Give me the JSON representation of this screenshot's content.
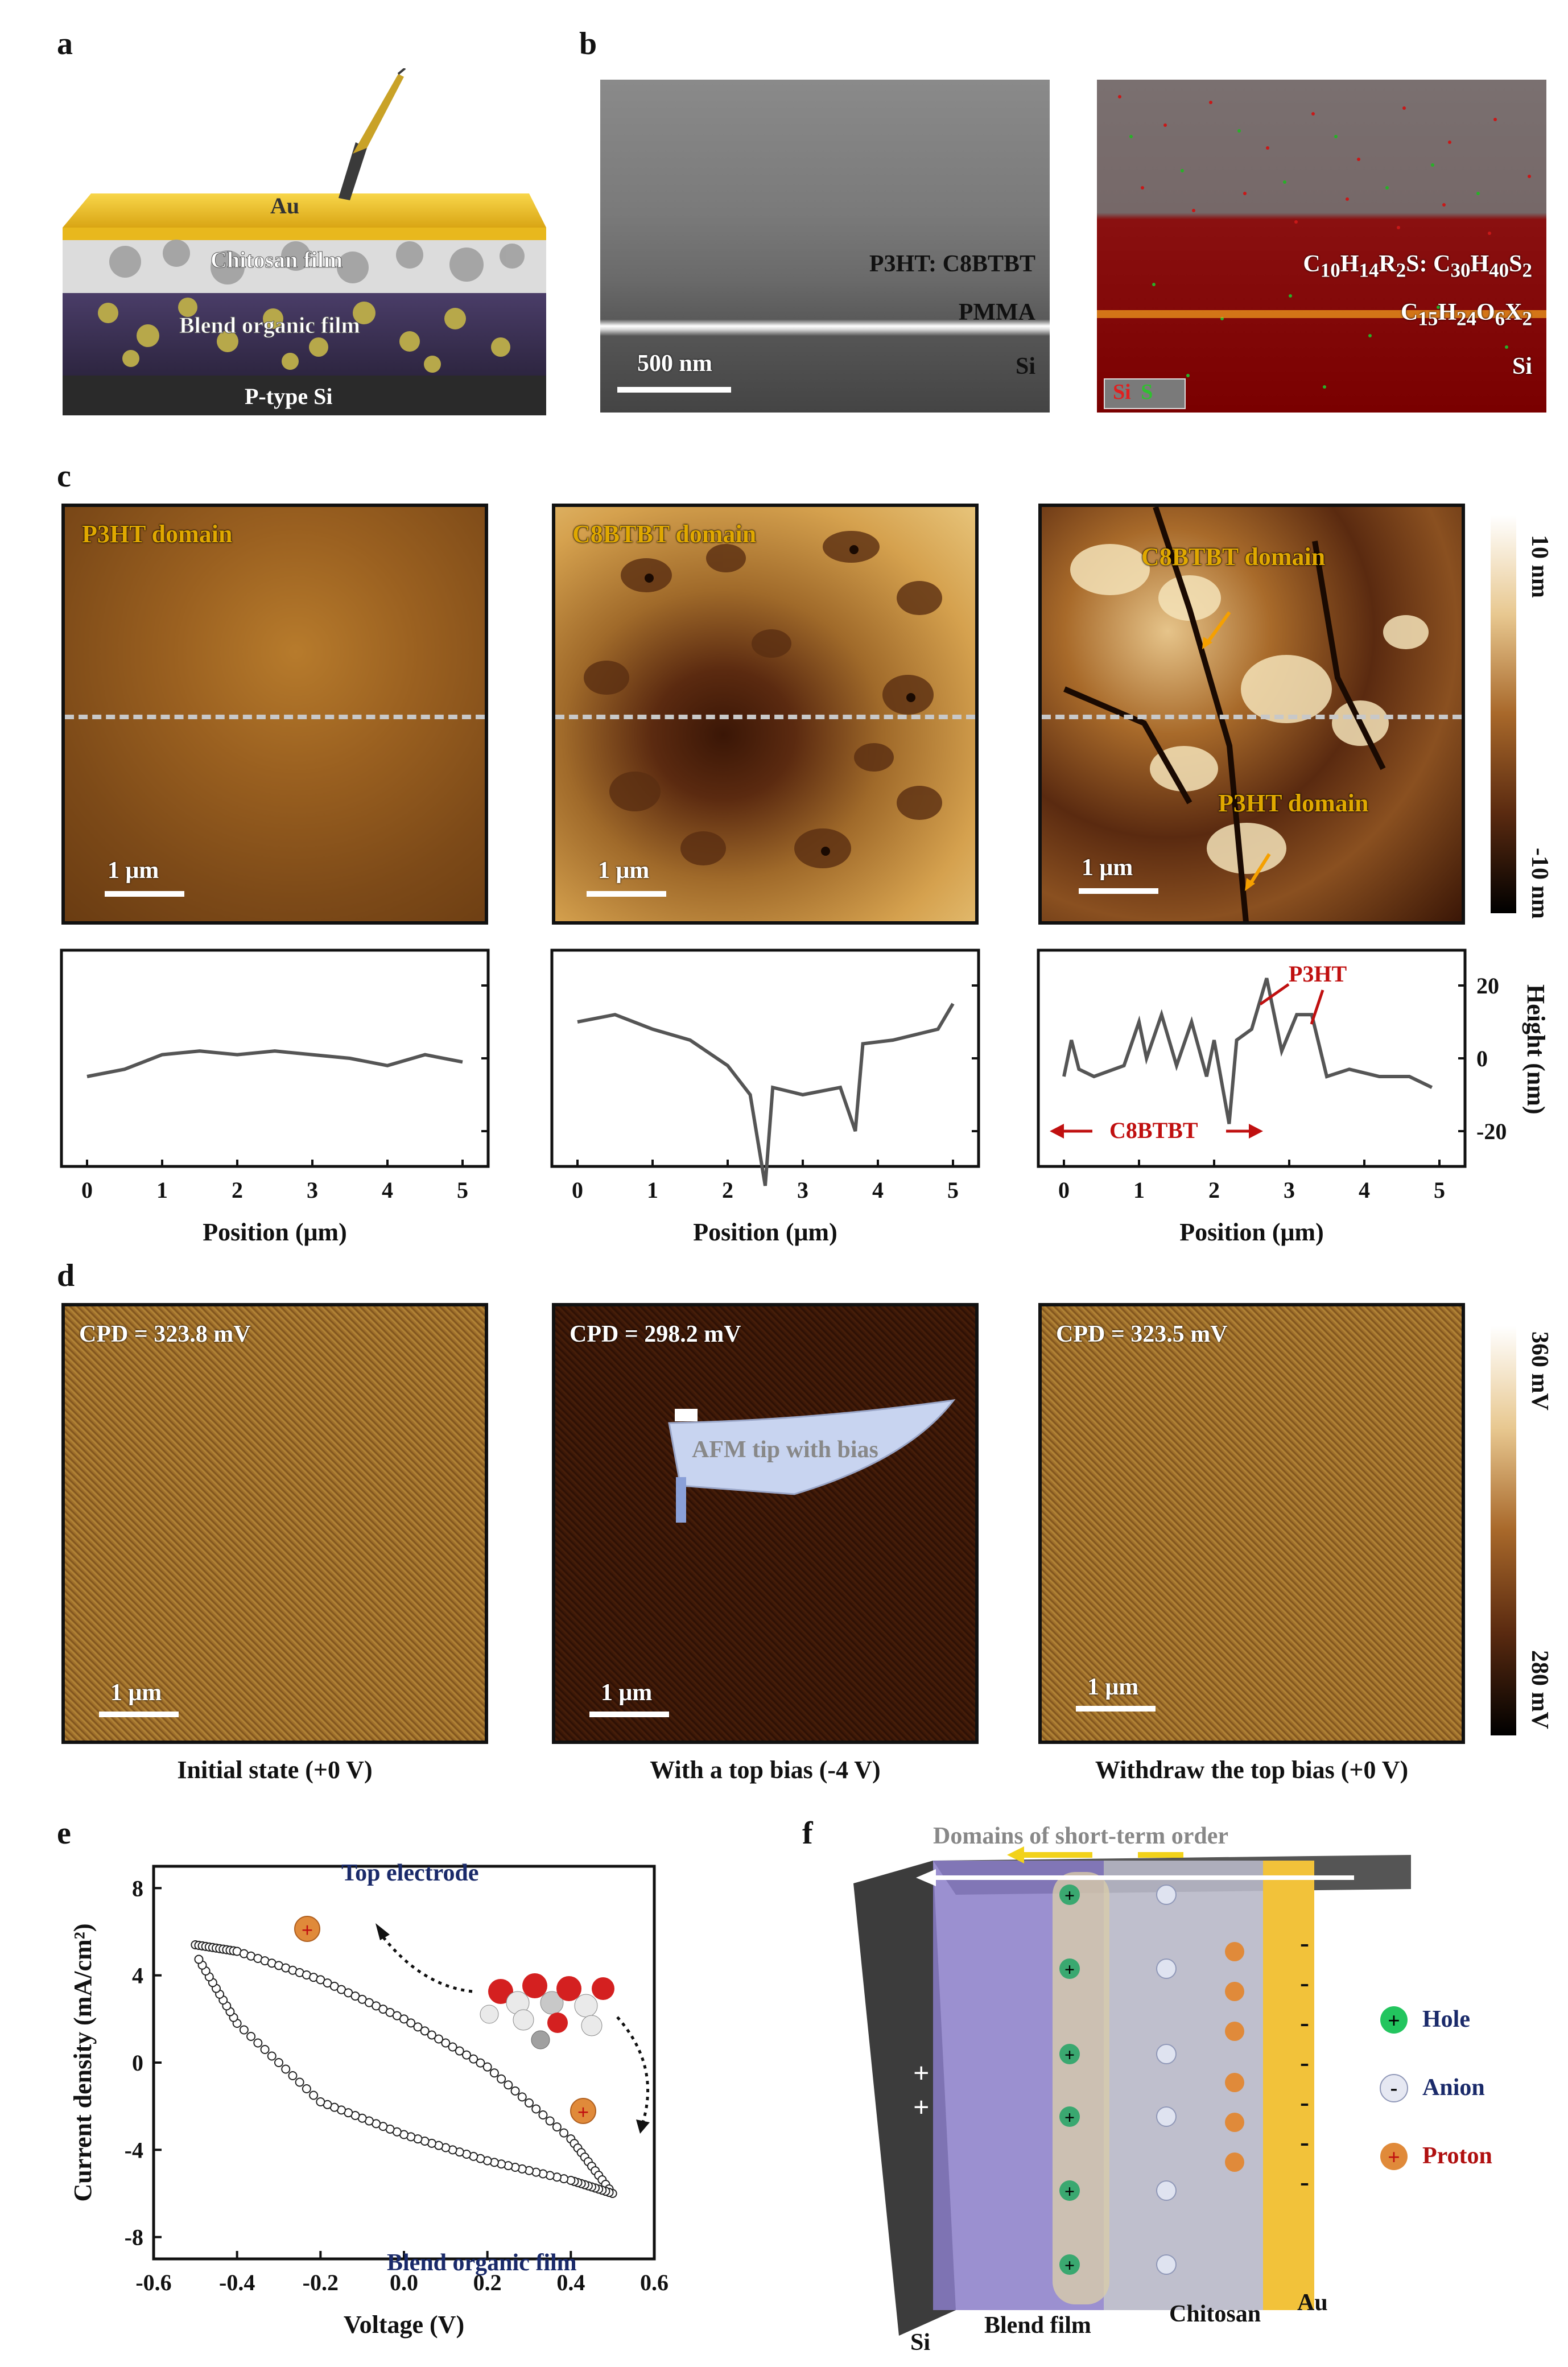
{
  "panels": {
    "a": "a",
    "b": "b",
    "c": "c",
    "d": "d",
    "e": "e",
    "f": "f"
  },
  "panel_a": {
    "layers": [
      "Au",
      "Chitosan film",
      "Blend organic film",
      "P-type Si"
    ]
  },
  "panel_b": {
    "sem": {
      "labels": [
        "P3HT: C8BTBT",
        "PMMA",
        "Si"
      ],
      "scale_bar": "500 nm"
    },
    "eds": {
      "formula1_parts": [
        "C",
        "10",
        "H",
        "14",
        "R",
        "2",
        "S: C",
        "30",
        "H",
        "40",
        "S",
        "2"
      ],
      "formula2_parts": [
        "C",
        "15",
        "H",
        "24",
        "O",
        "6",
        "X",
        "2"
      ],
      "si_label": "Si",
      "legend_si": "Si",
      "legend_s": "S"
    }
  },
  "panel_c": {
    "images": [
      {
        "label": "P3HT domain",
        "scale_bar": "1 μm"
      },
      {
        "label": "C8BTBT domain",
        "scale_bar": "1 μm"
      },
      {
        "label_top": "C8BTBT domain",
        "label_bottom": "P3HT domain",
        "scale_bar": "1 μm"
      }
    ],
    "colorbar": {
      "top": "10 nm",
      "bottom": "-10 nm"
    },
    "xlabel": "Position (μm)",
    "ylabel": "Height (nm)",
    "annotations": {
      "p3ht": "P3HT",
      "c8btbt": "C8BTBT"
    }
  },
  "panel_d": {
    "images": [
      {
        "cpd": "CPD = 323.8 mV",
        "scale_bar": "1 μm",
        "caption": "Initial state (+0 V)"
      },
      {
        "cpd": "CPD = 298.2 mV",
        "scale_bar": "1 μm",
        "caption": "With a top bias (-4 V)",
        "tip_label": "AFM tip with bias"
      },
      {
        "cpd": "CPD = 323.5 mV",
        "scale_bar": "1 μm",
        "caption": "Withdraw the top bias (+0 V)"
      }
    ],
    "colorbar": {
      "top": "360 mV",
      "bottom": "280 mV"
    }
  },
  "panel_e": {
    "top_label": "Top electrode",
    "bottom_label": "Blend organic film",
    "proton_symbol": "+"
  },
  "panel_f": {
    "title": "Domains of short-term order",
    "legend": [
      {
        "label": "Hole",
        "symbol": "+",
        "color": "#22c55e"
      },
      {
        "label": "Anion",
        "symbol": "-",
        "color": "#d9dde8"
      },
      {
        "label": "Proton",
        "symbol": "+",
        "color": "#e08a3a"
      }
    ],
    "bottom_labels": [
      "Si",
      "Blend film",
      "Chitosan",
      "Au"
    ],
    "si_charges": [
      "+",
      "+"
    ],
    "au_charges": [
      "-",
      "-",
      "-",
      "-",
      "-",
      "-",
      "-"
    ]
  },
  "chart_data": [
    {
      "type": "line",
      "title": "",
      "xlabel": "Position (μm)",
      "ylabel": "",
      "xlim": [
        0,
        5
      ],
      "x_ticks": [
        "0",
        "1",
        "2",
        "3",
        "4",
        "5"
      ],
      "series": [
        {
          "x": [
            0,
            0.5,
            1,
            1.5,
            2,
            2.5,
            3,
            3.5,
            4,
            4.5,
            5
          ],
          "values": [
            -5,
            -3,
            1,
            2,
            1,
            2,
            1,
            0,
            -2,
            1,
            -1
          ]
        }
      ]
    },
    {
      "type": "line",
      "title": "",
      "xlabel": "Position (μm)",
      "ylabel": "",
      "xlim": [
        0,
        5
      ],
      "x_ticks": [
        "0",
        "1",
        "2",
        "3",
        "4",
        "5"
      ],
      "series": [
        {
          "x": [
            0,
            0.5,
            1,
            1.5,
            2,
            2.3,
            2.5,
            2.6,
            3,
            3.5,
            3.7,
            3.8,
            4.2,
            4.8,
            5
          ],
          "values": [
            10,
            12,
            8,
            5,
            -2,
            -10,
            -35,
            -8,
            -10,
            -8,
            -20,
            4,
            5,
            8,
            15
          ]
        }
      ]
    },
    {
      "type": "line",
      "title": "",
      "xlabel": "Position (μm)",
      "ylabel": "Height (nm)",
      "xlim": [
        0,
        5
      ],
      "ylim": [
        -25,
        25
      ],
      "x_ticks": [
        "0",
        "1",
        "2",
        "3",
        "4",
        "5"
      ],
      "y_ticks": [
        "20",
        "0",
        "-20"
      ],
      "series": [
        {
          "x": [
            0,
            0.1,
            0.2,
            0.4,
            0.8,
            1.0,
            1.1,
            1.3,
            1.5,
            1.7,
            1.9,
            2.0,
            2.2,
            2.3,
            2.5,
            2.7,
            2.9,
            3.1,
            3.3,
            3.5,
            3.8,
            4.2,
            4.6,
            4.9
          ],
          "values": [
            -5,
            5,
            -3,
            -5,
            -2,
            10,
            0,
            12,
            -2,
            10,
            -5,
            5,
            -18,
            5,
            8,
            22,
            2,
            12,
            12,
            -5,
            -3,
            -5,
            -5,
            -8
          ]
        }
      ]
    },
    {
      "type": "scatter",
      "title": "",
      "xlabel": "Voltage (V)",
      "ylabel": "Current density (mA/cm²)",
      "xlim": [
        -0.6,
        0.6
      ],
      "ylim": [
        -9,
        9
      ],
      "x_ticks": [
        "-0.6",
        "-0.4",
        "-0.2",
        "0.0",
        "0.2",
        "0.4",
        "0.6"
      ],
      "y_ticks": [
        "8",
        "4",
        "0",
        "-4",
        "-8"
      ],
      "series": [
        {
          "x": [
            -0.5,
            -0.4,
            -0.2,
            0,
            0.2,
            0.4,
            0.5
          ],
          "values": [
            5.4,
            5.1,
            3.8,
            2.0,
            -0.2,
            -3.5,
            -6.0
          ]
        },
        {
          "x": [
            0.5,
            0.4,
            0.2,
            0,
            -0.2,
            -0.4,
            -0.5
          ],
          "values": [
            -6.0,
            -5.4,
            -4.5,
            -3.3,
            -1.8,
            1.8,
            5.0
          ]
        }
      ]
    }
  ]
}
